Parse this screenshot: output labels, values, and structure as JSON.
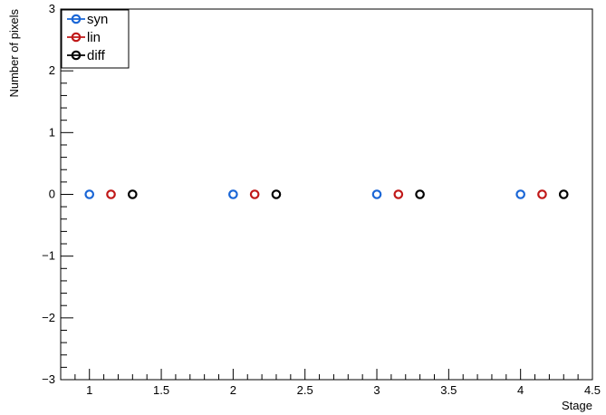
{
  "chart_data": {
    "type": "scatter",
    "title": "",
    "xlabel": "Stage",
    "ylabel": "Number of pixels",
    "xlim": [
      0.8,
      4.5
    ],
    "ylim": [
      -3,
      3
    ],
    "grid": false,
    "legend_position": "top-left",
    "x_ticks": [
      {
        "value": 1,
        "label": "1"
      },
      {
        "value": 1.5,
        "label": "1.5"
      },
      {
        "value": 2,
        "label": "2"
      },
      {
        "value": 2.5,
        "label": "2.5"
      },
      {
        "value": 3,
        "label": "3"
      },
      {
        "value": 3.5,
        "label": "3.5"
      },
      {
        "value": 4,
        "label": "4"
      },
      {
        "value": 4.5,
        "label": "4.5"
      }
    ],
    "y_ticks": [
      {
        "value": -3,
        "label": "−3"
      },
      {
        "value": -2,
        "label": "−2"
      },
      {
        "value": -1,
        "label": "−1"
      },
      {
        "value": 0,
        "label": "0"
      },
      {
        "value": 1,
        "label": "1"
      },
      {
        "value": 2,
        "label": "2"
      },
      {
        "value": 3,
        "label": "3"
      }
    ],
    "series": [
      {
        "name": "syn",
        "color": "#1a66d6",
        "x": [
          1,
          2,
          3,
          4
        ],
        "y": [
          0,
          0,
          0,
          0
        ]
      },
      {
        "name": "lin",
        "color": "#c01818",
        "x": [
          1.15,
          2.15,
          3.15,
          4.15
        ],
        "y": [
          0,
          0,
          0,
          0
        ]
      },
      {
        "name": "diff",
        "color": "#000000",
        "x": [
          1.3,
          2.3,
          3.3,
          4.3
        ],
        "y": [
          0,
          0,
          0,
          0
        ]
      }
    ]
  }
}
